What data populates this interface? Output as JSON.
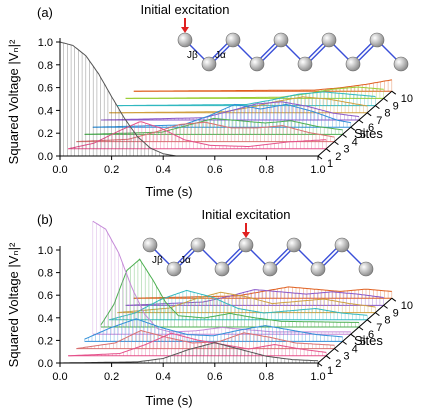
{
  "chart_data": [
    {
      "panel_label": "(a)",
      "type": "line",
      "subtype": "3d-waterfall",
      "annotation": "Initial excitation",
      "excited_site": 1,
      "coupling_labels": [
        "Jβ",
        "Jα"
      ],
      "xlabel": "Time (s)",
      "ylabel": "Squared Voltage |Vₙ|²",
      "zlabel": "Sites",
      "xlim": [
        0,
        1.0
      ],
      "ylim": [
        0,
        1.0
      ],
      "xticks": [
        "0.0",
        "0.2",
        "0.4",
        "0.6",
        "0.8",
        "1.0"
      ],
      "yticks": [
        "0.0",
        "0.2",
        "0.4",
        "0.6",
        "0.8",
        "1.0"
      ],
      "site_ticks": [
        "1",
        "2",
        "3",
        "4",
        "5",
        "6",
        "7",
        "8",
        "9",
        "10"
      ],
      "series": [
        {
          "site": 1,
          "color": "#555555",
          "envelope": [
            [
              0,
              1.0
            ],
            [
              0.05,
              0.97
            ],
            [
              0.1,
              0.88
            ],
            [
              0.15,
              0.72
            ],
            [
              0.2,
              0.52
            ],
            [
              0.25,
              0.33
            ],
            [
              0.3,
              0.17
            ],
            [
              0.35,
              0.07
            ],
            [
              0.4,
              0.02
            ],
            [
              0.45,
              0.0
            ],
            [
              1.0,
              0.0
            ]
          ]
        },
        {
          "site": 2,
          "color": "#e5508a",
          "envelope": [
            [
              0,
              0
            ],
            [
              0.1,
              0.05
            ],
            [
              0.2,
              0.16
            ],
            [
              0.28,
              0.24
            ],
            [
              0.36,
              0.18
            ],
            [
              0.45,
              0.08
            ],
            [
              0.55,
              0.03
            ],
            [
              0.7,
              0.02
            ],
            [
              0.85,
              0.06
            ],
            [
              1.0,
              0.08
            ]
          ]
        },
        {
          "site": 3,
          "color": "#d87070",
          "envelope": [
            [
              0,
              0
            ],
            [
              0.2,
              0.02
            ],
            [
              0.3,
              0.08
            ],
            [
              0.4,
              0.15
            ],
            [
              0.5,
              0.17
            ],
            [
              0.6,
              0.12
            ],
            [
              0.7,
              0.12
            ],
            [
              0.8,
              0.14
            ],
            [
              0.9,
              0.08
            ],
            [
              1.0,
              0.04
            ]
          ]
        },
        {
          "site": 4,
          "color": "#4caf50",
          "envelope": [
            [
              0,
              0
            ],
            [
              0.3,
              0.02
            ],
            [
              0.4,
              0.08
            ],
            [
              0.5,
              0.14
            ],
            [
              0.6,
              0.12
            ],
            [
              0.7,
              0.1
            ],
            [
              0.8,
              0.12
            ],
            [
              0.9,
              0.07
            ],
            [
              1.0,
              0.04
            ]
          ]
        },
        {
          "site": 5,
          "color": "#2f8fd8",
          "envelope": [
            [
              0,
              0
            ],
            [
              0.35,
              0.02
            ],
            [
              0.45,
              0.1
            ],
            [
              0.55,
              0.2
            ],
            [
              0.65,
              0.16
            ],
            [
              0.75,
              0.2
            ],
            [
              0.85,
              0.14
            ],
            [
              0.95,
              0.06
            ],
            [
              1.0,
              0.04
            ]
          ]
        },
        {
          "site": 6,
          "color": "#8a56c8",
          "envelope": [
            [
              0,
              0
            ],
            [
              0.4,
              0.02
            ],
            [
              0.5,
              0.08
            ],
            [
              0.6,
              0.14
            ],
            [
              0.7,
              0.16
            ],
            [
              0.8,
              0.12
            ],
            [
              0.9,
              0.06
            ],
            [
              1.0,
              0.03
            ]
          ]
        },
        {
          "site": 7,
          "color": "#d0a040",
          "envelope": [
            [
              0,
              0
            ],
            [
              0.45,
              0.01
            ],
            [
              0.55,
              0.05
            ],
            [
              0.65,
              0.1
            ],
            [
              0.75,
              0.14
            ],
            [
              0.85,
              0.12
            ],
            [
              0.95,
              0.08
            ],
            [
              1.0,
              0.06
            ]
          ]
        },
        {
          "site": 8,
          "color": "#30b8c0",
          "envelope": [
            [
              0,
              0
            ],
            [
              0.5,
              0.01
            ],
            [
              0.6,
              0.05
            ],
            [
              0.7,
              0.1
            ],
            [
              0.8,
              0.12
            ],
            [
              0.9,
              0.1
            ],
            [
              1.0,
              0.08
            ]
          ]
        },
        {
          "site": 9,
          "color": "#9acd32",
          "envelope": [
            [
              0,
              0
            ],
            [
              0.6,
              0.01
            ],
            [
              0.7,
              0.04
            ],
            [
              0.8,
              0.08
            ],
            [
              0.9,
              0.1
            ],
            [
              1.0,
              0.08
            ]
          ]
        },
        {
          "site": 10,
          "color": "#e06020",
          "envelope": [
            [
              0,
              0
            ],
            [
              0.7,
              0.01
            ],
            [
              0.8,
              0.03
            ],
            [
              0.9,
              0.06
            ],
            [
              1.0,
              0.1
            ]
          ]
        }
      ]
    },
    {
      "panel_label": "(b)",
      "type": "line",
      "subtype": "3d-waterfall",
      "annotation": "Initial excitation",
      "excited_site": 5,
      "coupling_labels": [
        "Jβ",
        "Jα"
      ],
      "xlabel": "Time (s)",
      "ylabel": "Squared Voltage |Vₙ|²",
      "zlabel": "Sites",
      "xlim": [
        0,
        1.0
      ],
      "ylim": [
        0,
        1.0
      ],
      "xticks": [
        "0.0",
        "0.2",
        "0.4",
        "0.6",
        "0.8",
        "1.0"
      ],
      "yticks": [
        "0.0",
        "0.2",
        "0.4",
        "0.6",
        "0.8",
        "1.0"
      ],
      "site_ticks": [
        "1",
        "2",
        "3",
        "4",
        "5",
        "6",
        "7",
        "8",
        "9",
        "10"
      ],
      "series": [
        {
          "site": 1,
          "color": "#555555",
          "envelope": [
            [
              0,
              0
            ],
            [
              0.3,
              0.01
            ],
            [
              0.4,
              0.04
            ],
            [
              0.5,
              0.12
            ],
            [
              0.6,
              0.18
            ],
            [
              0.7,
              0.12
            ],
            [
              0.8,
              0.06
            ],
            [
              0.9,
              0.03
            ],
            [
              1.0,
              0.02
            ]
          ]
        },
        {
          "site": 2,
          "color": "#e5508a",
          "envelope": [
            [
              0,
              0
            ],
            [
              0.2,
              0.02
            ],
            [
              0.3,
              0.1
            ],
            [
              0.4,
              0.2
            ],
            [
              0.5,
              0.14
            ],
            [
              0.6,
              0.1
            ],
            [
              0.7,
              0.06
            ],
            [
              0.8,
              0.1
            ],
            [
              0.9,
              0.06
            ],
            [
              1.0,
              0.03
            ]
          ]
        },
        {
          "site": 3,
          "color": "#d87070",
          "envelope": [
            [
              0,
              0
            ],
            [
              0.15,
              0.05
            ],
            [
              0.25,
              0.16
            ],
            [
              0.35,
              0.1
            ],
            [
              0.45,
              0.05
            ],
            [
              0.55,
              0.06
            ],
            [
              0.65,
              0.14
            ],
            [
              0.75,
              0.1
            ],
            [
              0.85,
              0.05
            ],
            [
              1.0,
              0.03
            ]
          ]
        },
        {
          "site": 4,
          "color": "#2f8fd8",
          "envelope": [
            [
              0,
              0.02
            ],
            [
              0.1,
              0.12
            ],
            [
              0.2,
              0.2
            ],
            [
              0.3,
              0.12
            ],
            [
              0.4,
              0.06
            ],
            [
              0.5,
              0.05
            ],
            [
              0.6,
              0.1
            ],
            [
              0.7,
              0.14
            ],
            [
              0.8,
              0.1
            ],
            [
              0.9,
              0.06
            ],
            [
              1.0,
              0.04
            ]
          ]
        },
        {
          "site": 5,
          "color": "#c58ad8",
          "envelope": [
            [
              0,
              1.0
            ],
            [
              0.05,
              0.93
            ],
            [
              0.1,
              0.72
            ],
            [
              0.15,
              0.42
            ],
            [
              0.2,
              0.18
            ],
            [
              0.25,
              0.05
            ],
            [
              0.3,
              0.02
            ],
            [
              0.4,
              0.03
            ],
            [
              0.5,
              0.06
            ],
            [
              0.6,
              0.04
            ],
            [
              0.7,
              0.02
            ],
            [
              1.0,
              0.02
            ]
          ]
        },
        {
          "site": 6,
          "color": "#4caf50",
          "envelope": [
            [
              0,
              0.02
            ],
            [
              0.05,
              0.2
            ],
            [
              0.1,
              0.5
            ],
            [
              0.15,
              0.6
            ],
            [
              0.2,
              0.42
            ],
            [
              0.25,
              0.22
            ],
            [
              0.3,
              0.1
            ],
            [
              0.4,
              0.08
            ],
            [
              0.5,
              0.12
            ],
            [
              0.6,
              0.08
            ],
            [
              0.7,
              0.05
            ],
            [
              1.0,
              0.04
            ]
          ]
        },
        {
          "site": 7,
          "color": "#30b8c0",
          "envelope": [
            [
              0,
              0
            ],
            [
              0.1,
              0.06
            ],
            [
              0.2,
              0.18
            ],
            [
              0.3,
              0.26
            ],
            [
              0.4,
              0.2
            ],
            [
              0.5,
              0.1
            ],
            [
              0.6,
              0.06
            ],
            [
              0.7,
              0.08
            ],
            [
              0.8,
              0.1
            ],
            [
              0.9,
              0.06
            ],
            [
              1.0,
              0.04
            ]
          ]
        },
        {
          "site": 8,
          "color": "#d0a040",
          "envelope": [
            [
              0,
              0
            ],
            [
              0.2,
              0.04
            ],
            [
              0.3,
              0.12
            ],
            [
              0.4,
              0.18
            ],
            [
              0.5,
              0.14
            ],
            [
              0.6,
              0.08
            ],
            [
              0.7,
              0.1
            ],
            [
              0.8,
              0.12
            ],
            [
              0.9,
              0.08
            ],
            [
              1.0,
              0.05
            ]
          ]
        },
        {
          "site": 9,
          "color": "#8a56c8",
          "envelope": [
            [
              0,
              0
            ],
            [
              0.3,
              0.03
            ],
            [
              0.4,
              0.08
            ],
            [
              0.5,
              0.14
            ],
            [
              0.6,
              0.12
            ],
            [
              0.7,
              0.1
            ],
            [
              0.8,
              0.12
            ],
            [
              0.9,
              0.1
            ],
            [
              1.0,
              0.07
            ]
          ]
        },
        {
          "site": 10,
          "color": "#e06020",
          "envelope": [
            [
              0,
              0
            ],
            [
              0.4,
              0.02
            ],
            [
              0.5,
              0.06
            ],
            [
              0.6,
              0.1
            ],
            [
              0.7,
              0.08
            ],
            [
              0.8,
              0.06
            ],
            [
              0.9,
              0.08
            ],
            [
              1.0,
              0.06
            ]
          ]
        }
      ]
    }
  ]
}
